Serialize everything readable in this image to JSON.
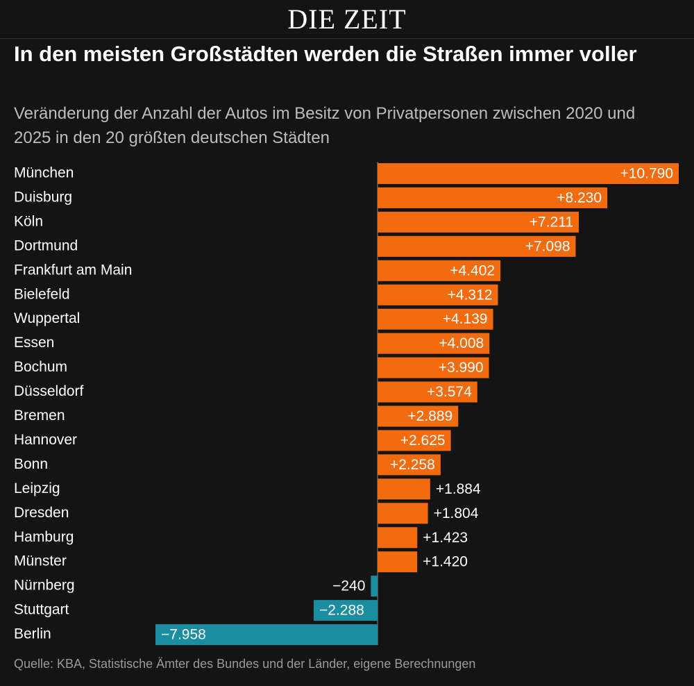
{
  "logo": "DIE ZEIT",
  "chart_data": {
    "type": "hbar",
    "title": "In den meisten Großstädten werden die Straßen immer voller",
    "subtitle": "Veränderung der Anzahl der Autos im Besitz von Privatpersonen zwischen 2020 und 2025 in den 20 größten deutschen Städten",
    "categories": [
      "München",
      "Duisburg",
      "Köln",
      "Dortmund",
      "Frankfurt am Main",
      "Bielefeld",
      "Wuppertal",
      "Essen",
      "Bochum",
      "Düsseldorf",
      "Bremen",
      "Hannover",
      "Bonn",
      "Leipzig",
      "Dresden",
      "Hamburg",
      "Münster",
      "Nürnberg",
      "Stuttgart",
      "Berlin"
    ],
    "values": [
      10790,
      8230,
      7211,
      7098,
      4402,
      4312,
      4139,
      4008,
      3990,
      3574,
      2889,
      2625,
      2258,
      1884,
      1804,
      1423,
      1420,
      -240,
      -2288,
      -7958
    ],
    "value_labels": [
      "+10.790",
      "+8.230",
      "+7.211",
      "+7.098",
      "+4.402",
      "+4.312",
      "+4.139",
      "+4.008",
      "+3.990",
      "+3.574",
      "+2.889",
      "+2.625",
      "+2.258",
      "+1.884",
      "+1.804",
      "+1.423",
      "+1.420",
      "−240",
      "−2.288",
      "−7.958"
    ],
    "color": "#f26b0f",
    "negative_color": "#1a8ea0",
    "source": "Quelle: KBA, Statistische Ämter des Bundes und der Länder, eigene Berechnungen"
  }
}
